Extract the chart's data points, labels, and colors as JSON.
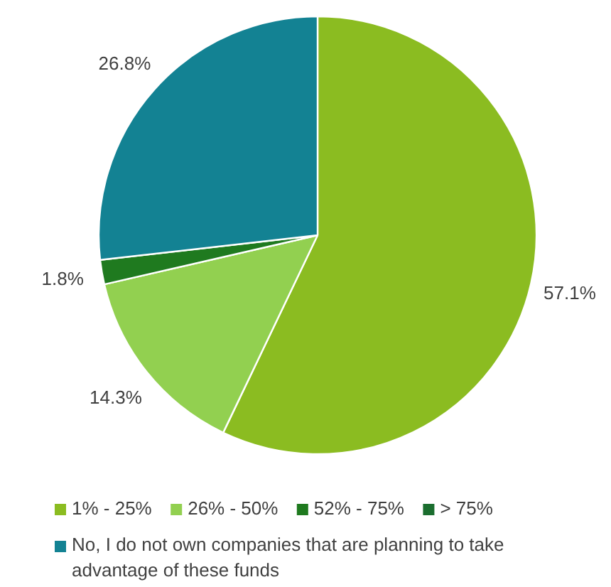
{
  "chart_data": {
    "type": "pie",
    "categories": [
      "1% - 25%",
      "26% - 50%",
      "52% - 75%",
      "> 75%",
      "No, I do not own companies that are planning to take advantage of these funds"
    ],
    "values": [
      57.1,
      14.3,
      1.8,
      0,
      26.8
    ],
    "value_labels": [
      "57.1%",
      "14.3%",
      "1.8%",
      null,
      "26.8%"
    ],
    "colors": [
      "#8bbc21",
      "#92d050",
      "#1f7a1f",
      "#1b6e2f",
      "#138293"
    ],
    "legend": "bottom"
  }
}
